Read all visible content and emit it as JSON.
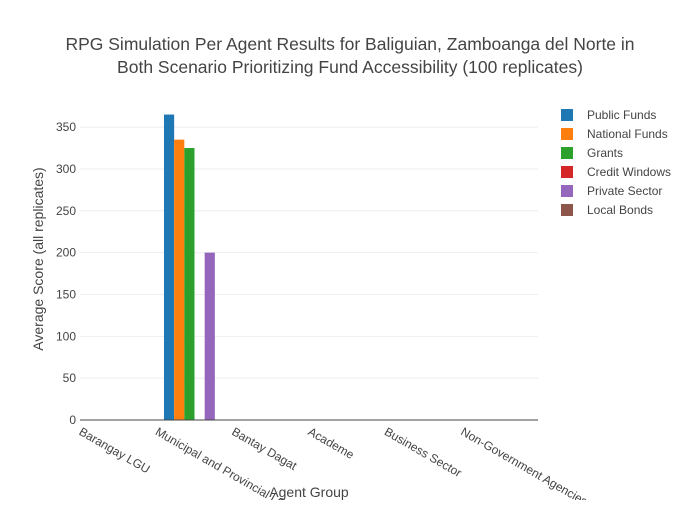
{
  "chart_data": {
    "type": "bar",
    "title_lines": [
      "RPG Simulation Per Agent Results for Baliguian, Zamboanga del Norte in",
      "Both Scenario Prioritizing Fund Accessibility (100 replicates)"
    ],
    "xlabel": "Agent Group",
    "ylabel": "Average Score (all replicates)",
    "ylim": [
      0,
      380
    ],
    "yticks": [
      0,
      50,
      100,
      150,
      200,
      250,
      300,
      350
    ],
    "grid": true,
    "legend_position": "top-right",
    "categories": [
      "Barangay LGU",
      "Municipal and Provincial LGU",
      "Bantay Dagat",
      "Academe",
      "Business Sector",
      "Non-Government Agencies"
    ],
    "series": [
      {
        "name": "Public Funds",
        "color": "#1f77b4",
        "values": [
          0,
          365,
          0,
          0,
          0,
          0
        ]
      },
      {
        "name": "National Funds",
        "color": "#ff7f0e",
        "values": [
          0,
          335,
          0,
          0,
          0,
          0
        ]
      },
      {
        "name": "Grants",
        "color": "#2ca02c",
        "values": [
          0,
          325,
          0,
          0,
          0,
          0
        ]
      },
      {
        "name": "Credit Windows",
        "color": "#d62728",
        "values": [
          0,
          0,
          0,
          0,
          0,
          0
        ]
      },
      {
        "name": "Private Sector",
        "color": "#9467bd",
        "values": [
          0,
          200,
          0,
          0,
          0,
          0
        ]
      },
      {
        "name": "Local Bonds",
        "color": "#8c564b",
        "values": [
          0,
          0,
          0,
          0,
          0,
          0
        ]
      }
    ]
  }
}
